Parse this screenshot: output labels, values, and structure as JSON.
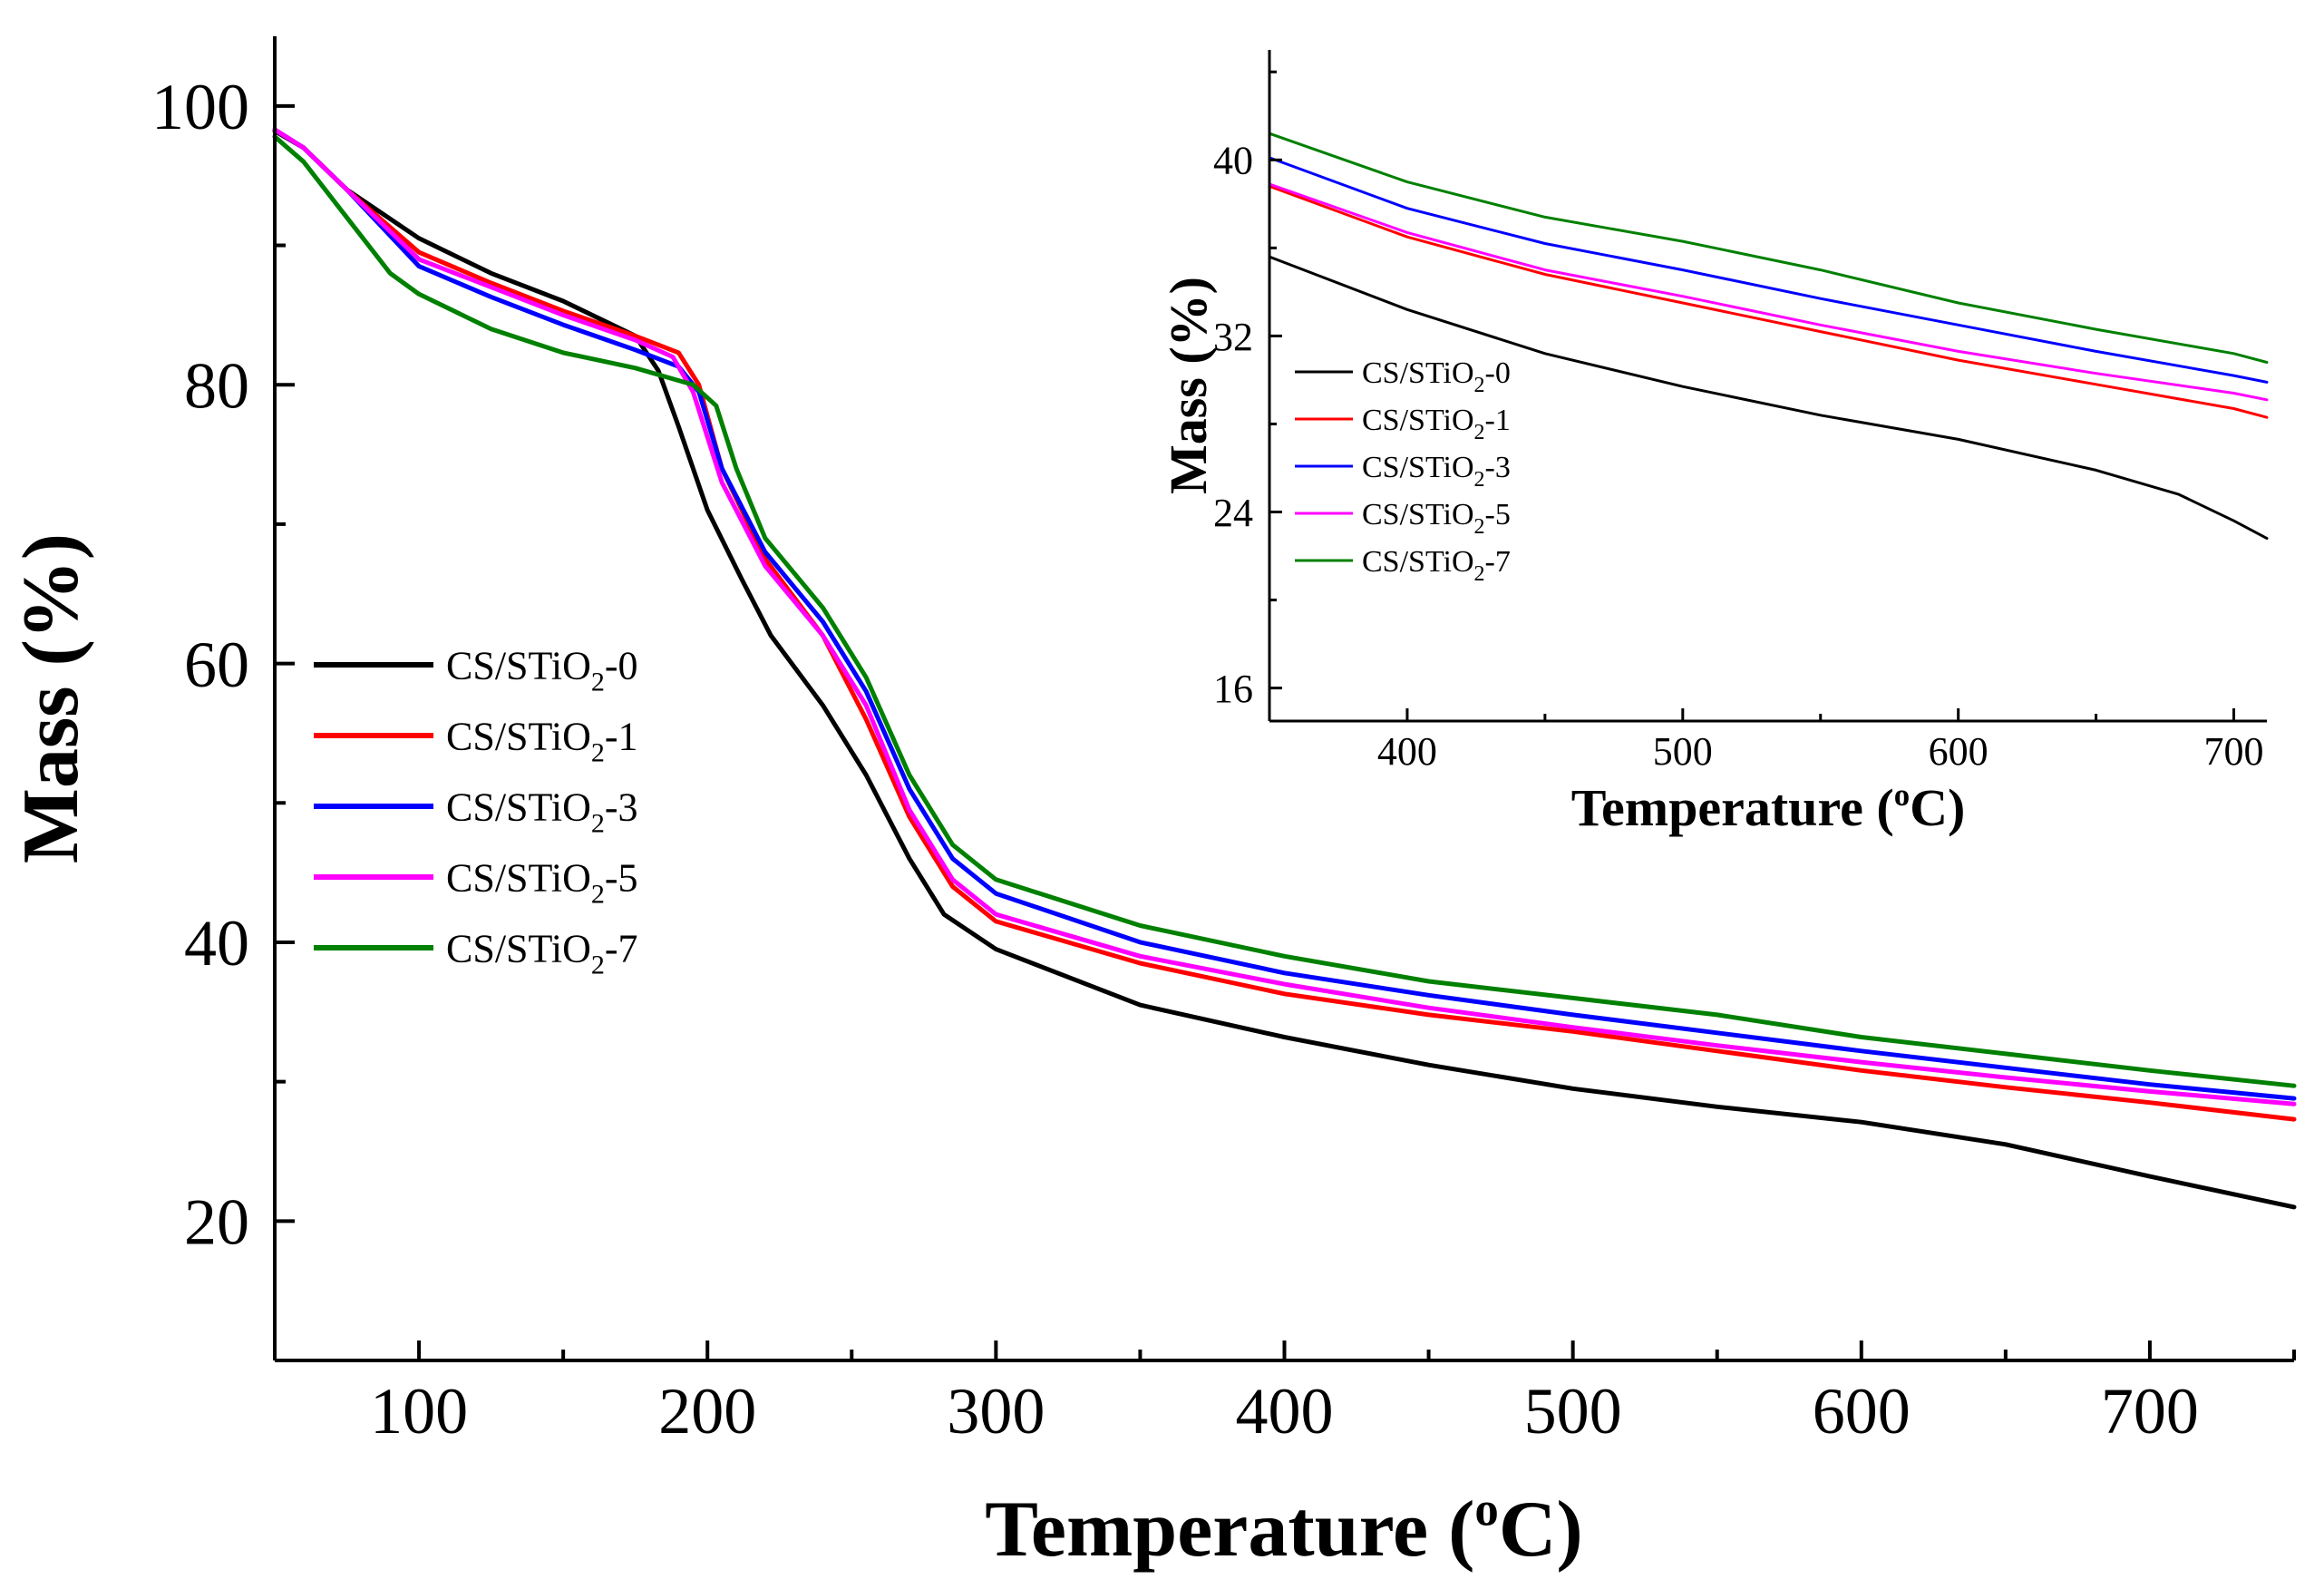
{
  "chart_data": [
    {
      "id": "main",
      "type": "line",
      "xlabel": "Temperature (",
      "xlabel_sup": "o",
      "xlabel_end": "C)",
      "ylabel": "Mass (%)",
      "xlim": [
        50,
        750
      ],
      "ylim": [
        10,
        105
      ],
      "xticks": [
        100,
        200,
        300,
        400,
        500,
        600,
        700
      ],
      "yticks": [
        20,
        40,
        60,
        80,
        100
      ],
      "legend_position": "center-left",
      "series": [
        {
          "name_base": "CS/STiO",
          "name_sub": "2",
          "name_suffix": "-0",
          "color": "#000000",
          "points": [
            [
              50,
              98.2
            ],
            [
              60,
              97
            ],
            [
              75,
              94
            ],
            [
              100,
              90.5
            ],
            [
              125,
              88
            ],
            [
              150,
              86
            ],
            [
              175,
              83.5
            ],
            [
              183,
              81
            ],
            [
              190,
              77
            ],
            [
              200,
              71
            ],
            [
              212,
              66
            ],
            [
              222,
              62
            ],
            [
              240,
              57
            ],
            [
              255,
              52
            ],
            [
              270,
              46
            ],
            [
              282,
              42
            ],
            [
              300,
              39.5
            ],
            [
              350,
              35.5
            ],
            [
              400,
              33.2
            ],
            [
              450,
              31.2
            ],
            [
              500,
              29.5
            ],
            [
              550,
              28.2
            ],
            [
              600,
              27.1
            ],
            [
              650,
              25.5
            ],
            [
              700,
              23.2
            ],
            [
              750,
              21
            ]
          ]
        },
        {
          "name_base": "CS/STiO",
          "name_sub": "2",
          "name_suffix": "-1",
          "color": "#ff0000",
          "points": [
            [
              50,
              98.3
            ],
            [
              60,
              97
            ],
            [
              75,
              94
            ],
            [
              100,
              89.5
            ],
            [
              125,
              87.3
            ],
            [
              150,
              85.3
            ],
            [
              175,
              83.5
            ],
            [
              190,
              82.3
            ],
            [
              197,
              80
            ],
            [
              205,
              74
            ],
            [
              220,
              67.5
            ],
            [
              240,
              62
            ],
            [
              255,
              56
            ],
            [
              270,
              49
            ],
            [
              285,
              44
            ],
            [
              300,
              41.5
            ],
            [
              350,
              38.5
            ],
            [
              400,
              36.3
            ],
            [
              450,
              34.8
            ],
            [
              500,
              33.6
            ],
            [
              550,
              32.2
            ],
            [
              600,
              30.8
            ],
            [
              650,
              29.6
            ],
            [
              700,
              28.5
            ],
            [
              750,
              27.3
            ]
          ]
        },
        {
          "name_base": "CS/STiO",
          "name_sub": "2",
          "name_suffix": "-3",
          "color": "#0000ff",
          "points": [
            [
              50,
              98.3
            ],
            [
              60,
              97
            ],
            [
              75,
              94
            ],
            [
              100,
              88.5
            ],
            [
              125,
              86.3
            ],
            [
              150,
              84.3
            ],
            [
              175,
              82.5
            ],
            [
              190,
              81.3
            ],
            [
              197,
              79.5
            ],
            [
              205,
              74
            ],
            [
              220,
              68
            ],
            [
              240,
              63
            ],
            [
              255,
              58
            ],
            [
              270,
              51
            ],
            [
              285,
              46
            ],
            [
              300,
              43.5
            ],
            [
              350,
              40
            ],
            [
              400,
              37.8
            ],
            [
              450,
              36.2
            ],
            [
              500,
              34.8
            ],
            [
              550,
              33.5
            ],
            [
              600,
              32.2
            ],
            [
              650,
              31
            ],
            [
              700,
              29.8
            ],
            [
              750,
              28.8
            ]
          ]
        },
        {
          "name_base": "CS/STiO",
          "name_sub": "2",
          "name_suffix": "-5",
          "color": "#ff00ff",
          "points": [
            [
              50,
              98.3
            ],
            [
              60,
              97
            ],
            [
              75,
              94
            ],
            [
              100,
              89
            ],
            [
              125,
              87
            ],
            [
              150,
              85
            ],
            [
              175,
              83.2
            ],
            [
              188,
              82
            ],
            [
              195,
              79.5
            ],
            [
              205,
              73
            ],
            [
              220,
              67
            ],
            [
              240,
              62
            ],
            [
              255,
              57
            ],
            [
              270,
              49.5
            ],
            [
              285,
              44.5
            ],
            [
              300,
              42
            ],
            [
              350,
              39
            ],
            [
              400,
              37
            ],
            [
              450,
              35.3
            ],
            [
              500,
              33.9
            ],
            [
              550,
              32.6
            ],
            [
              600,
              31.4
            ],
            [
              650,
              30.3
            ],
            [
              700,
              29.3
            ],
            [
              750,
              28.4
            ]
          ]
        },
        {
          "name_base": "CS/STiO",
          "name_sub": "2",
          "name_suffix": "-7",
          "color": "#008000",
          "points": [
            [
              50,
              97.8
            ],
            [
              60,
              96
            ],
            [
              75,
              92
            ],
            [
              90,
              88
            ],
            [
              100,
              86.5
            ],
            [
              125,
              84
            ],
            [
              150,
              82.3
            ],
            [
              175,
              81.2
            ],
            [
              195,
              80
            ],
            [
              203,
              78.5
            ],
            [
              210,
              74
            ],
            [
              220,
              69
            ],
            [
              240,
              64
            ],
            [
              255,
              59
            ],
            [
              270,
              52
            ],
            [
              285,
              47
            ],
            [
              300,
              44.5
            ],
            [
              350,
              41.2
            ],
            [
              400,
              39
            ],
            [
              450,
              37.2
            ],
            [
              500,
              36
            ],
            [
              550,
              34.8
            ],
            [
              600,
              33.2
            ],
            [
              650,
              32
            ],
            [
              700,
              30.8
            ],
            [
              750,
              29.7
            ]
          ]
        }
      ]
    },
    {
      "id": "inset",
      "type": "line",
      "xlabel": "Temperature (",
      "xlabel_sup": "o",
      "xlabel_end": "C)",
      "ylabel": "Mass (%)",
      "xlim": [
        350,
        712
      ],
      "ylim": [
        14.5,
        45
      ],
      "xticks": [
        400,
        500,
        600,
        700
      ],
      "yticks": [
        16,
        24,
        32,
        40
      ],
      "legend_position": "left",
      "series": [
        {
          "name_base": "CS/STiO",
          "name_sub": "2",
          "name_suffix": "-0",
          "color": "#000000",
          "points": [
            [
              350,
              35.6
            ],
            [
              400,
              33.2
            ],
            [
              450,
              31.2
            ],
            [
              500,
              29.7
            ],
            [
              550,
              28.4
            ],
            [
              600,
              27.3
            ],
            [
              650,
              25.9
            ],
            [
              680,
              24.8
            ],
            [
              700,
              23.6
            ],
            [
              712,
              22.8
            ]
          ]
        },
        {
          "name_base": "CS/STiO",
          "name_sub": "2",
          "name_suffix": "-1",
          "color": "#ff0000",
          "points": [
            [
              350,
              38.8
            ],
            [
              400,
              36.5
            ],
            [
              450,
              34.8
            ],
            [
              500,
              33.5
            ],
            [
              550,
              32.2
            ],
            [
              600,
              30.9
            ],
            [
              650,
              29.8
            ],
            [
              700,
              28.7
            ],
            [
              712,
              28.3
            ]
          ]
        },
        {
          "name_base": "CS/STiO",
          "name_sub": "2",
          "name_suffix": "-3",
          "color": "#0000ff",
          "points": [
            [
              350,
              40.1
            ],
            [
              400,
              37.8
            ],
            [
              450,
              36.2
            ],
            [
              500,
              35
            ],
            [
              550,
              33.7
            ],
            [
              600,
              32.5
            ],
            [
              650,
              31.3
            ],
            [
              700,
              30.2
            ],
            [
              712,
              29.9
            ]
          ]
        },
        {
          "name_base": "CS/STiO",
          "name_sub": "2",
          "name_suffix": "-5",
          "color": "#ff00ff",
          "points": [
            [
              350,
              38.9
            ],
            [
              400,
              36.7
            ],
            [
              450,
              35
            ],
            [
              500,
              33.8
            ],
            [
              550,
              32.5
            ],
            [
              600,
              31.3
            ],
            [
              650,
              30.3
            ],
            [
              700,
              29.4
            ],
            [
              712,
              29.1
            ]
          ]
        },
        {
          "name_base": "CS/STiO",
          "name_sub": "2",
          "name_suffix": "-7",
          "color": "#008000",
          "points": [
            [
              350,
              41.2
            ],
            [
              400,
              39
            ],
            [
              450,
              37.4
            ],
            [
              500,
              36.3
            ],
            [
              550,
              35
            ],
            [
              600,
              33.5
            ],
            [
              650,
              32.3
            ],
            [
              700,
              31.2
            ],
            [
              712,
              30.8
            ]
          ]
        }
      ]
    }
  ]
}
